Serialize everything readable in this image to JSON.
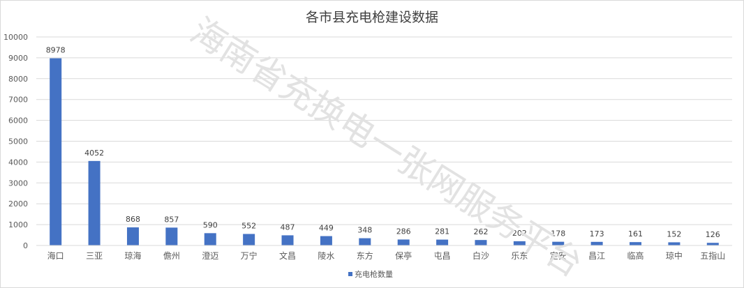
{
  "chart_data": {
    "type": "bar",
    "title": "各市县充电枪建设数据",
    "watermark": "海南省充换电一张网服务平台",
    "categories": [
      "海口",
      "三亚",
      "琼海",
      "儋州",
      "澄迈",
      "万宁",
      "文昌",
      "陵水",
      "东方",
      "保亭",
      "屯昌",
      "白沙",
      "乐东",
      "定安",
      "昌江",
      "临高",
      "琼中",
      "五指山"
    ],
    "series": [
      {
        "name": "充电枪数量",
        "values": [
          8978,
          4052,
          868,
          857,
          590,
          552,
          487,
          449,
          348,
          286,
          281,
          262,
          202,
          178,
          173,
          161,
          152,
          126
        ]
      }
    ],
    "ylim": [
      0,
      10000
    ],
    "yticks": [
      "0",
      "1000",
      "2000",
      "3000",
      "4000",
      "5000",
      "6000",
      "7000",
      "8000",
      "9000",
      "10000"
    ],
    "grid": true,
    "legend_position": "bottom",
    "bar_color": "#4472c4"
  }
}
